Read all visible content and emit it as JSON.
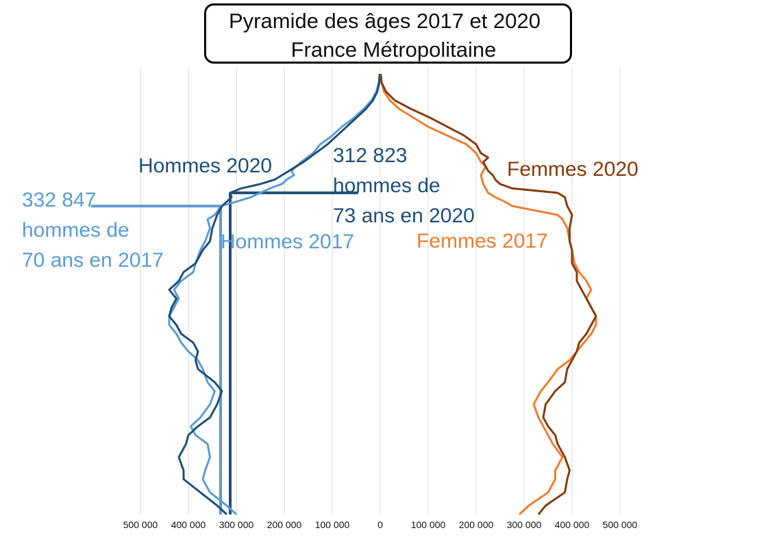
{
  "title": {
    "line1": "Pyramide des âges 2017 et 2020",
    "line2": "France Métropolitaine"
  },
  "labels": {
    "hommes_2020": "Hommes 2020",
    "hommes_2017": "Hommes 2017",
    "femmes_2020": "Femmes 2020",
    "femmes_2017": "Femmes 2017",
    "annot_2020_line1": "312 823",
    "annot_2020_line2": "hommes de",
    "annot_2020_line3": "73 ans en 2020",
    "annot_2017_line1": "332 847",
    "annot_2017_line2": "hommes de",
    "annot_2017_line3": "70 ans en 2017"
  },
  "colors": {
    "hommes_2020": "#1f4e79",
    "hommes_2017": "#5b9bd5",
    "femmes_2020": "#843c0c",
    "femmes_2017": "#ed7d31",
    "grid": "#d9d9d9"
  },
  "chart_data": {
    "type": "line",
    "orientation": "population pyramid (ages bottom to top, male values to the left, female values to the right)",
    "x_ticks": [
      "500 000",
      "400 000",
      "300 000",
      "200 000",
      "100 000",
      "0",
      "100 000",
      "200 000",
      "300 000",
      "400 000",
      "500 000"
    ],
    "xlim": [
      -500000,
      500000
    ],
    "ylim": [
      0,
      100
    ],
    "grid": "vertical",
    "series": [
      {
        "name": "Hommes 2017",
        "side": "left",
        "points": [
          [
            0,
            300000
          ],
          [
            2,
            320000
          ],
          [
            5,
            355000
          ],
          [
            8,
            370000
          ],
          [
            10,
            365000
          ],
          [
            13,
            355000
          ],
          [
            16,
            360000
          ],
          [
            18,
            385000
          ],
          [
            20,
            395000
          ],
          [
            22,
            375000
          ],
          [
            25,
            355000
          ],
          [
            28,
            345000
          ],
          [
            30,
            360000
          ],
          [
            33,
            370000
          ],
          [
            35,
            380000
          ],
          [
            37,
            400000
          ],
          [
            39,
            415000
          ],
          [
            41,
            425000
          ],
          [
            43,
            440000
          ],
          [
            45,
            440000
          ],
          [
            47,
            430000
          ],
          [
            49,
            420000
          ],
          [
            51,
            430000
          ],
          [
            53,
            415000
          ],
          [
            55,
            390000
          ],
          [
            57,
            385000
          ],
          [
            60,
            375000
          ],
          [
            62,
            365000
          ],
          [
            65,
            355000
          ],
          [
            67,
            360000
          ],
          [
            68,
            345000
          ],
          [
            69,
            338000
          ],
          [
            70,
            333000
          ],
          [
            71,
            300000
          ],
          [
            72,
            270000
          ],
          [
            73,
            250000
          ],
          [
            74,
            230000
          ],
          [
            75,
            205000
          ],
          [
            76,
            195000
          ],
          [
            77,
            180000
          ],
          [
            78,
            185000
          ],
          [
            79,
            175000
          ],
          [
            80,
            165000
          ],
          [
            82,
            140000
          ],
          [
            84,
            125000
          ],
          [
            86,
            100000
          ],
          [
            88,
            80000
          ],
          [
            90,
            55000
          ],
          [
            92,
            35000
          ],
          [
            94,
            18000
          ],
          [
            96,
            8000
          ],
          [
            98,
            3000
          ],
          [
            100,
            1000
          ]
        ]
      },
      {
        "name": "Hommes 2020",
        "side": "left",
        "points": [
          [
            0,
            320000
          ],
          [
            2,
            340000
          ],
          [
            5,
            375000
          ],
          [
            8,
            410000
          ],
          [
            10,
            410000
          ],
          [
            13,
            420000
          ],
          [
            16,
            405000
          ],
          [
            18,
            400000
          ],
          [
            20,
            380000
          ],
          [
            22,
            355000
          ],
          [
            25,
            340000
          ],
          [
            28,
            330000
          ],
          [
            30,
            345000
          ],
          [
            33,
            380000
          ],
          [
            35,
            385000
          ],
          [
            37,
            380000
          ],
          [
            39,
            390000
          ],
          [
            41,
            415000
          ],
          [
            43,
            425000
          ],
          [
            45,
            440000
          ],
          [
            47,
            435000
          ],
          [
            49,
            425000
          ],
          [
            51,
            440000
          ],
          [
            53,
            420000
          ],
          [
            55,
            410000
          ],
          [
            57,
            385000
          ],
          [
            60,
            370000
          ],
          [
            62,
            355000
          ],
          [
            65,
            350000
          ],
          [
            68,
            340000
          ],
          [
            70,
            330000
          ],
          [
            71,
            320000
          ],
          [
            72,
            310000
          ],
          [
            73,
            313000
          ],
          [
            74,
            290000
          ],
          [
            75,
            250000
          ],
          [
            76,
            220000
          ],
          [
            77,
            205000
          ],
          [
            78,
            190000
          ],
          [
            79,
            175000
          ],
          [
            80,
            160000
          ],
          [
            82,
            135000
          ],
          [
            84,
            110000
          ],
          [
            86,
            90000
          ],
          [
            88,
            70000
          ],
          [
            90,
            50000
          ],
          [
            92,
            30000
          ],
          [
            94,
            15000
          ],
          [
            96,
            6000
          ],
          [
            98,
            2000
          ],
          [
            100,
            1000
          ]
        ]
      },
      {
        "name": "Femmes 2017",
        "side": "right",
        "points": [
          [
            0,
            290000
          ],
          [
            2,
            310000
          ],
          [
            5,
            350000
          ],
          [
            8,
            365000
          ],
          [
            10,
            365000
          ],
          [
            13,
            380000
          ],
          [
            16,
            360000
          ],
          [
            18,
            350000
          ],
          [
            20,
            340000
          ],
          [
            22,
            330000
          ],
          [
            25,
            320000
          ],
          [
            28,
            335000
          ],
          [
            30,
            350000
          ],
          [
            33,
            370000
          ],
          [
            35,
            395000
          ],
          [
            37,
            410000
          ],
          [
            39,
            425000
          ],
          [
            41,
            440000
          ],
          [
            43,
            450000
          ],
          [
            45,
            450000
          ],
          [
            47,
            440000
          ],
          [
            49,
            430000
          ],
          [
            51,
            440000
          ],
          [
            53,
            430000
          ],
          [
            55,
            415000
          ],
          [
            57,
            405000
          ],
          [
            60,
            400000
          ],
          [
            62,
            395000
          ],
          [
            65,
            390000
          ],
          [
            67,
            380000
          ],
          [
            68,
            370000
          ],
          [
            70,
            275000
          ],
          [
            71,
            260000
          ],
          [
            72,
            240000
          ],
          [
            73,
            225000
          ],
          [
            75,
            215000
          ],
          [
            77,
            210000
          ],
          [
            79,
            220000
          ],
          [
            80,
            210000
          ],
          [
            82,
            200000
          ],
          [
            84,
            180000
          ],
          [
            86,
            140000
          ],
          [
            88,
            100000
          ],
          [
            90,
            70000
          ],
          [
            92,
            40000
          ],
          [
            94,
            20000
          ],
          [
            96,
            8000
          ],
          [
            98,
            3000
          ],
          [
            100,
            1000
          ]
        ]
      },
      {
        "name": "Femmes 2020",
        "side": "right",
        "points": [
          [
            0,
            330000
          ],
          [
            2,
            345000
          ],
          [
            5,
            385000
          ],
          [
            8,
            390000
          ],
          [
            10,
            395000
          ],
          [
            13,
            385000
          ],
          [
            16,
            370000
          ],
          [
            18,
            365000
          ],
          [
            20,
            350000
          ],
          [
            22,
            340000
          ],
          [
            25,
            345000
          ],
          [
            28,
            365000
          ],
          [
            30,
            385000
          ],
          [
            33,
            390000
          ],
          [
            35,
            400000
          ],
          [
            37,
            410000
          ],
          [
            39,
            415000
          ],
          [
            41,
            430000
          ],
          [
            43,
            440000
          ],
          [
            45,
            450000
          ],
          [
            47,
            440000
          ],
          [
            49,
            430000
          ],
          [
            51,
            420000
          ],
          [
            53,
            410000
          ],
          [
            55,
            410000
          ],
          [
            57,
            400000
          ],
          [
            60,
            400000
          ],
          [
            62,
            395000
          ],
          [
            65,
            395000
          ],
          [
            68,
            400000
          ],
          [
            70,
            390000
          ],
          [
            72,
            385000
          ],
          [
            73,
            370000
          ],
          [
            74,
            275000
          ],
          [
            75,
            250000
          ],
          [
            76,
            240000
          ],
          [
            77,
            235000
          ],
          [
            78,
            225000
          ],
          [
            80,
            215000
          ],
          [
            81,
            225000
          ],
          [
            82,
            210000
          ],
          [
            84,
            200000
          ],
          [
            86,
            175000
          ],
          [
            88,
            140000
          ],
          [
            90,
            105000
          ],
          [
            92,
            65000
          ],
          [
            94,
            30000
          ],
          [
            96,
            12000
          ],
          [
            98,
            3000
          ],
          [
            100,
            1000
          ]
        ]
      }
    ],
    "annotations": [
      {
        "series": "Hommes 2020",
        "age": 73,
        "value": 312823
      },
      {
        "series": "Hommes 2017",
        "age": 70,
        "value": 332847
      }
    ]
  }
}
